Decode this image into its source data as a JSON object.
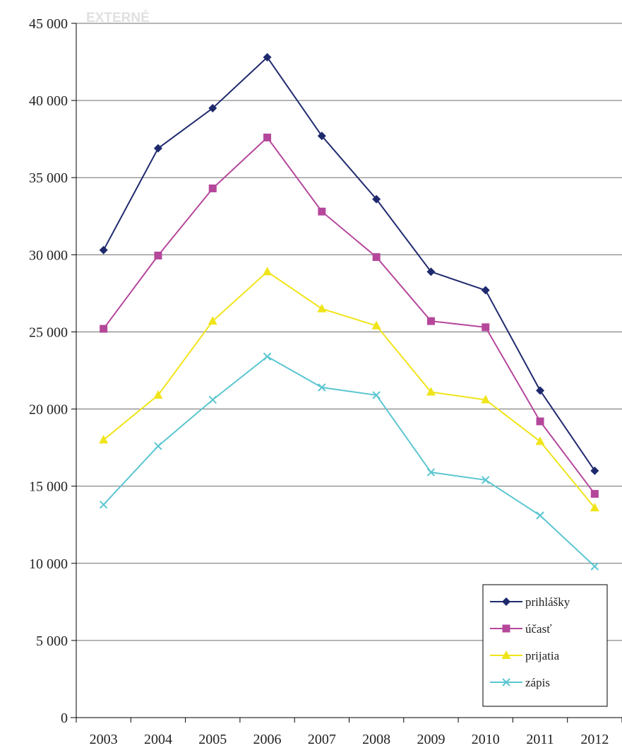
{
  "chart_data": {
    "type": "line",
    "title": "EXTERNÉ",
    "xlabel": "",
    "ylabel": "",
    "categories": [
      "2003",
      "2004",
      "2005",
      "2006",
      "2007",
      "2008",
      "2009",
      "2010",
      "2011",
      "2012"
    ],
    "ylim": [
      0,
      45000
    ],
    "yticks": [
      0,
      5000,
      10000,
      15000,
      20000,
      25000,
      30000,
      35000,
      40000,
      45000
    ],
    "ytick_labels": [
      "0",
      "5 000",
      "10 000",
      "15 000",
      "20 000",
      "25 000",
      "30 000",
      "35 000",
      "40 000",
      "45 000"
    ],
    "grid": true,
    "legend_position": "bottom-right",
    "series": [
      {
        "name": "prihlášky",
        "color": "#1f2a6e",
        "marker": "diamond",
        "values": [
          30300,
          36900,
          39500,
          42800,
          37700,
          33600,
          28900,
          27700,
          21200,
          16000
        ]
      },
      {
        "name": "účasť",
        "color": "#b5479b",
        "marker": "square",
        "values": [
          25200,
          29950,
          34300,
          37600,
          32800,
          29850,
          25700,
          25300,
          19200,
          14500
        ]
      },
      {
        "name": "prijatia",
        "color": "#f0e41a",
        "marker": "triangle",
        "values": [
          18000,
          20900,
          25700,
          28900,
          26500,
          25400,
          21100,
          20600,
          17900,
          13600
        ]
      },
      {
        "name": "zápis",
        "color": "#5bc6d1",
        "marker": "x",
        "values": [
          13800,
          17600,
          20600,
          23400,
          21400,
          20900,
          15900,
          15400,
          13100,
          9800
        ]
      }
    ]
  }
}
